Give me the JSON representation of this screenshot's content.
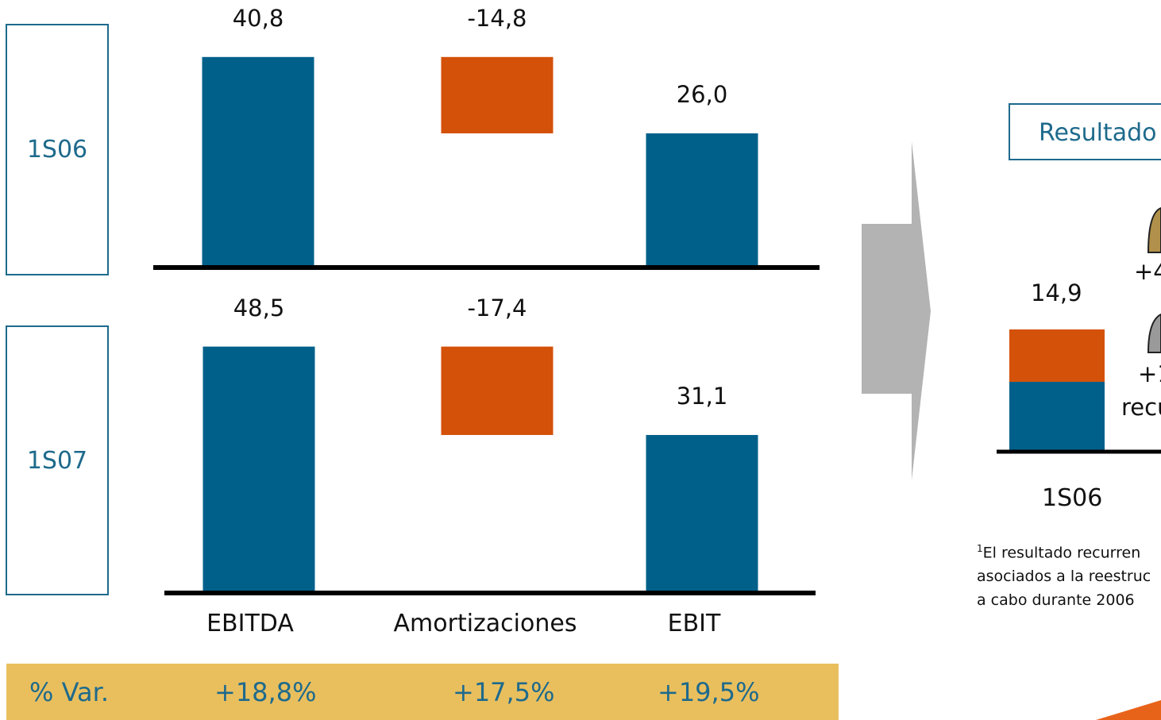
{
  "rows": [
    {
      "label": "1S06"
    },
    {
      "label": "1S07"
    }
  ],
  "chart_data": [
    {
      "type": "bar",
      "title": "1S06",
      "categories": [
        "EBITDA",
        "Amortizaciones",
        "EBIT"
      ],
      "values": [
        40.8,
        -14.8,
        26.0
      ],
      "value_labels": [
        "40,8",
        "-14,8",
        "26,0"
      ],
      "waterfall": true
    },
    {
      "type": "bar",
      "title": "1S07",
      "categories": [
        "EBITDA",
        "Amortizaciones",
        "EBIT"
      ],
      "values": [
        48.5,
        -17.4,
        31.1
      ],
      "value_labels": [
        "48,5",
        "-17,4",
        "31,1"
      ],
      "waterfall": true
    }
  ],
  "categories": [
    "EBITDA",
    "Amortizaciones",
    "EBIT"
  ],
  "variation": {
    "label": "% Var.",
    "values": [
      "+18,8%",
      "+17,5%",
      "+19,5%"
    ]
  },
  "right_panel": {
    "box_label": "Resultado",
    "bar_value": "14,9",
    "bar_category": "1S06",
    "partial_labels": [
      "+4",
      "+1",
      "recu"
    ],
    "footnote_lines": [
      "El  resultado  recurren",
      "asociados a la reestruc",
      "a cabo durante 2006"
    ],
    "footnote_mark": "1"
  },
  "colors": {
    "blue": "#00608a",
    "orange": "#d4510a",
    "gold": "#e9bf5e",
    "brown_gold": "#b0904a",
    "arrow_gray": "#b3b3b3"
  }
}
